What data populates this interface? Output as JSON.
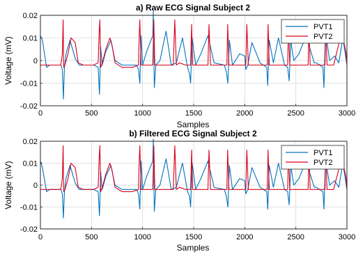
{
  "chart_data": [
    {
      "type": "line",
      "title": "a) Raw ECG Signal Subject 2",
      "xlabel": "Samples",
      "ylabel": "Voltage (mV)",
      "xlim": [
        0,
        3000
      ],
      "ylim": [
        -0.02,
        0.02
      ],
      "xticks": [
        0,
        500,
        1000,
        1500,
        2000,
        2500,
        3000
      ],
      "yticks": [
        -0.02,
        -0.01,
        0,
        0.01,
        0.02
      ],
      "ytick_labels": [
        "-0.02",
        "-0.01",
        "0",
        "0.01",
        "0.02"
      ],
      "grid": true,
      "legend": "top-right",
      "series": [
        {
          "name": "PVT1",
          "color": "#0072BD",
          "x": [
            0,
            20,
            60,
            90,
            150,
            200,
            215,
            225,
            235,
            250,
            290,
            340,
            380,
            450,
            520,
            565,
            578,
            590,
            605,
            640,
            690,
            730,
            800,
            880,
            940,
            960,
            973,
            985,
            1000,
            1040,
            1100,
            1105,
            1115,
            1130,
            1170,
            1230,
            1280,
            1330,
            1390,
            1440,
            1460,
            1470,
            1485,
            1520,
            1570,
            1640,
            1700,
            1800,
            1820,
            1835,
            1850,
            1880,
            1950,
            2000,
            2010,
            2030,
            2070,
            2150,
            2215,
            2225,
            2240,
            2280,
            2330,
            2390,
            2420,
            2435,
            2450,
            2480,
            2530,
            2600,
            2680,
            2700,
            2735,
            2765,
            2775,
            2790,
            2830,
            2880,
            2920,
            2960,
            3000
          ],
          "values": [
            0.011,
            0.009,
            -0.003,
            -0.002,
            -0.002,
            -0.002,
            -0.004,
            -0.017,
            -0.003,
            0.003,
            0.009,
            0.001,
            -0.002,
            -0.002,
            -0.002,
            -0.003,
            -0.015,
            0.006,
            -0.002,
            0.004,
            0.009,
            0.0,
            -0.002,
            -0.002,
            -0.002,
            -0.004,
            -0.01,
            0.011,
            -0.002,
            0.004,
            0.011,
            0.022,
            -0.012,
            -0.002,
            0.0,
            0.013,
            -0.002,
            -0.001,
            0.01,
            -0.003,
            -0.006,
            -0.01,
            0.01,
            -0.002,
            0.003,
            0.011,
            -0.001,
            -0.002,
            -0.005,
            -0.01,
            0.009,
            -0.002,
            0.003,
            0.002,
            -0.004,
            -0.002,
            0.008,
            -0.001,
            -0.003,
            -0.011,
            0.009,
            -0.001,
            0.01,
            -0.002,
            -0.003,
            -0.009,
            0.009,
            0.0,
            0.003,
            0.011,
            -0.001,
            -0.001,
            -0.002,
            -0.003,
            -0.012,
            0.013,
            0.0,
            0.002,
            -0.001,
            0.01,
            -0.002
          ]
        },
        {
          "name": "PVT2",
          "color": "#D9001A",
          "x": [
            0,
            60,
            150,
            200,
            215,
            222,
            228,
            240,
            270,
            300,
            340,
            370,
            420,
            470,
            520,
            565,
            575,
            582,
            590,
            600,
            640,
            680,
            700,
            730,
            800,
            900,
            960,
            965,
            973,
            985,
            1000,
            1100,
            1110,
            1120,
            1135,
            1150,
            1200,
            1260,
            1300,
            1315,
            1330,
            1360,
            1420,
            1470,
            1480,
            1490,
            1510,
            1560,
            1640,
            1650,
            1665,
            1690,
            1780,
            1825,
            1833,
            1845,
            1870,
            1950,
            2010,
            2020,
            2035,
            2060,
            2150,
            2220,
            2228,
            2240,
            2265,
            2350,
            2420,
            2428,
            2440,
            2465,
            2550,
            2620,
            2628,
            2640,
            2665,
            2750,
            2785,
            2793,
            2805,
            2830,
            2870,
            2930,
            2960,
            2990,
            3000
          ],
          "values": [
            -0.002,
            -0.002,
            -0.002,
            -0.002,
            0.003,
            0.018,
            -0.003,
            -0.002,
            0.003,
            0.01,
            0.008,
            -0.001,
            -0.002,
            -0.002,
            -0.002,
            -0.001,
            0.012,
            0.018,
            -0.003,
            -0.002,
            0.005,
            0.01,
            0.007,
            -0.001,
            -0.003,
            -0.003,
            -0.002,
            0.008,
            0.018,
            -0.002,
            -0.002,
            -0.002,
            0.018,
            -0.002,
            -0.002,
            -0.002,
            -0.002,
            -0.002,
            -0.002,
            0.018,
            -0.002,
            -0.001,
            -0.002,
            -0.002,
            0.016,
            -0.002,
            -0.002,
            -0.002,
            -0.002,
            0.016,
            -0.002,
            -0.002,
            -0.002,
            -0.002,
            0.016,
            -0.002,
            -0.002,
            -0.002,
            -0.002,
            0.016,
            -0.002,
            -0.002,
            -0.002,
            -0.002,
            0.016,
            -0.002,
            -0.002,
            -0.002,
            -0.002,
            0.016,
            -0.002,
            -0.002,
            -0.002,
            -0.002,
            0.016,
            -0.002,
            -0.002,
            -0.002,
            -0.002,
            0.016,
            -0.002,
            -0.002,
            -0.002,
            0.009,
            0.01,
            0.004,
            -0.002
          ]
        }
      ]
    },
    {
      "type": "line",
      "title": "b) Filtered ECG Signal Subject 2",
      "xlabel": "Samples",
      "ylabel": "Voltage (mV)",
      "xlim": [
        0,
        3000
      ],
      "ylim": [
        -0.02,
        0.02
      ],
      "xticks": [
        0,
        500,
        1000,
        1500,
        2000,
        2500,
        3000
      ],
      "yticks": [
        -0.02,
        -0.01,
        0,
        0.01,
        0.02
      ],
      "ytick_labels": [
        "-0.02",
        "-0.01",
        "0",
        "0.01",
        "0.02"
      ],
      "grid": true,
      "legend": "top-right",
      "series": [
        {
          "name": "PVT1",
          "color": "#0072BD",
          "x": [
            0,
            20,
            60,
            90,
            150,
            200,
            215,
            225,
            235,
            250,
            290,
            340,
            380,
            450,
            520,
            565,
            578,
            590,
            605,
            640,
            690,
            730,
            800,
            880,
            940,
            960,
            973,
            985,
            1000,
            1040,
            1100,
            1105,
            1115,
            1130,
            1170,
            1230,
            1280,
            1330,
            1390,
            1440,
            1460,
            1470,
            1485,
            1520,
            1570,
            1640,
            1700,
            1800,
            1820,
            1835,
            1850,
            1880,
            1950,
            2000,
            2010,
            2030,
            2070,
            2150,
            2215,
            2225,
            2240,
            2280,
            2330,
            2390,
            2420,
            2435,
            2450,
            2480,
            2530,
            2600,
            2680,
            2700,
            2735,
            2765,
            2775,
            2790,
            2830,
            2880,
            2920,
            2960,
            3000
          ],
          "values": [
            0.011,
            0.008,
            -0.003,
            -0.002,
            -0.002,
            -0.002,
            -0.004,
            -0.015,
            -0.003,
            0.003,
            0.009,
            0.001,
            -0.002,
            -0.002,
            -0.002,
            -0.003,
            -0.014,
            0.006,
            -0.002,
            0.004,
            0.009,
            0.0,
            -0.002,
            -0.002,
            -0.002,
            -0.004,
            -0.011,
            0.011,
            -0.002,
            0.004,
            0.011,
            0.021,
            -0.012,
            -0.002,
            0.0,
            0.012,
            -0.002,
            -0.001,
            0.01,
            -0.003,
            -0.005,
            -0.01,
            0.01,
            -0.002,
            0.003,
            0.011,
            -0.001,
            -0.002,
            -0.005,
            -0.01,
            0.009,
            -0.002,
            0.003,
            0.002,
            -0.004,
            -0.002,
            0.008,
            -0.001,
            -0.003,
            -0.011,
            0.009,
            -0.001,
            0.01,
            -0.002,
            -0.003,
            -0.009,
            0.009,
            0.0,
            0.003,
            0.011,
            -0.001,
            -0.001,
            -0.002,
            -0.003,
            -0.011,
            0.012,
            0.0,
            0.002,
            -0.001,
            0.01,
            -0.002
          ]
        },
        {
          "name": "PVT2",
          "color": "#D9001A",
          "x": [
            0,
            60,
            150,
            200,
            215,
            222,
            228,
            240,
            270,
            300,
            340,
            370,
            420,
            470,
            520,
            565,
            575,
            582,
            590,
            600,
            640,
            680,
            700,
            730,
            800,
            900,
            960,
            965,
            973,
            985,
            1000,
            1100,
            1110,
            1120,
            1135,
            1150,
            1200,
            1260,
            1300,
            1315,
            1330,
            1360,
            1420,
            1470,
            1480,
            1490,
            1510,
            1560,
            1640,
            1650,
            1665,
            1690,
            1780,
            1825,
            1833,
            1845,
            1870,
            1950,
            2010,
            2020,
            2035,
            2060,
            2150,
            2220,
            2228,
            2240,
            2265,
            2350,
            2420,
            2428,
            2440,
            2465,
            2550,
            2620,
            2628,
            2640,
            2665,
            2750,
            2785,
            2793,
            2805,
            2830,
            2870,
            2930,
            2960,
            2990,
            3000
          ],
          "values": [
            -0.002,
            -0.002,
            -0.002,
            -0.002,
            0.003,
            0.018,
            -0.003,
            -0.002,
            0.003,
            0.01,
            0.008,
            -0.001,
            -0.002,
            -0.002,
            -0.002,
            -0.001,
            0.012,
            0.018,
            -0.003,
            -0.002,
            0.005,
            0.01,
            0.007,
            -0.001,
            -0.003,
            -0.003,
            -0.002,
            0.008,
            0.018,
            -0.002,
            -0.002,
            -0.002,
            0.018,
            -0.002,
            -0.002,
            -0.002,
            -0.002,
            -0.002,
            -0.002,
            0.018,
            -0.002,
            -0.001,
            -0.002,
            -0.002,
            0.016,
            -0.002,
            -0.002,
            -0.002,
            -0.002,
            0.016,
            -0.002,
            -0.002,
            -0.002,
            -0.002,
            0.016,
            -0.002,
            -0.002,
            -0.002,
            -0.002,
            0.016,
            -0.002,
            -0.002,
            -0.002,
            -0.002,
            0.016,
            -0.002,
            -0.002,
            -0.002,
            -0.002,
            0.016,
            -0.002,
            -0.002,
            -0.002,
            -0.002,
            0.016,
            -0.002,
            -0.002,
            -0.002,
            -0.002,
            0.016,
            -0.002,
            -0.002,
            -0.002,
            0.009,
            0.01,
            0.004,
            -0.002
          ]
        }
      ]
    }
  ]
}
